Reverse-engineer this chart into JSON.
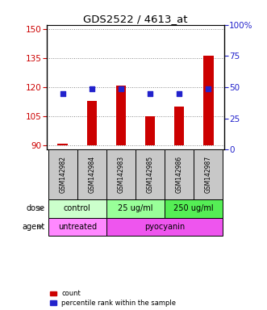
{
  "title": "GDS2522 / 4613_at",
  "samples": [
    "GSM142982",
    "GSM142984",
    "GSM142983",
    "GSM142985",
    "GSM142986",
    "GSM142987"
  ],
  "count_values": [
    91,
    113,
    121,
    105,
    110,
    136
  ],
  "percentile_values": [
    45,
    49,
    49,
    45,
    45,
    49
  ],
  "ylim_left": [
    88,
    152
  ],
  "ylim_right": [
    0,
    100
  ],
  "yticks_left": [
    90,
    105,
    120,
    135,
    150
  ],
  "yticks_right": [
    0,
    25,
    50,
    75,
    100
  ],
  "bar_color": "#cc0000",
  "dot_color": "#2222cc",
  "bar_bottom": 90,
  "dose_groups": [
    {
      "text": "control",
      "cols": [
        0,
        1
      ],
      "color": "#ccffcc"
    },
    {
      "text": "25 ug/ml",
      "cols": [
        2,
        3
      ],
      "color": "#99ff99"
    },
    {
      "text": "250 ug/ml",
      "cols": [
        4,
        5
      ],
      "color": "#55ee55"
    }
  ],
  "agent_groups": [
    {
      "text": "untreated",
      "cols": [
        0,
        1
      ],
      "color": "#ff88ff"
    },
    {
      "text": "pyocyanin",
      "cols": [
        2,
        3,
        4,
        5
      ],
      "color": "#ee55ee"
    }
  ],
  "dose_row_label": "dose",
  "agent_row_label": "agent",
  "legend_count_label": "count",
  "legend_percentile_label": "percentile rank within the sample",
  "left_axis_color": "#cc0000",
  "right_axis_color": "#2222cc",
  "grid_color": "#888888",
  "sample_box_color": "#c8c8c8",
  "bar_width": 0.35
}
